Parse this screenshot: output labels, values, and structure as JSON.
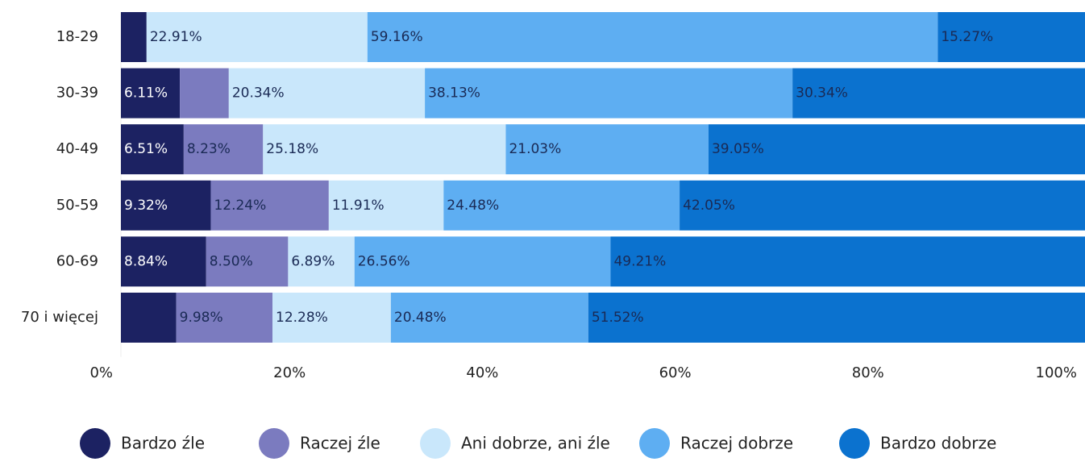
{
  "chart_data": {
    "type": "stacked_barh",
    "categories": [
      "18-29",
      "30-39",
      "40-49",
      "50-59",
      "60-69",
      "70 i więcej"
    ],
    "series": [
      {
        "name": "Bardzo źle",
        "color": "#1c2262",
        "values": [
          2.66,
          6.11,
          6.51,
          9.32,
          8.84,
          5.74
        ],
        "value_labels": [
          null,
          "6.11%",
          "6.51%",
          "9.32%",
          "8.84%",
          null
        ]
      },
      {
        "name": "Raczej źle",
        "color": "#7b7bbf",
        "values": [
          0,
          5.08,
          8.23,
          12.24,
          8.5,
          9.98
        ],
        "value_labels": [
          null,
          null,
          "8.23%",
          "12.24%",
          "8.50%",
          "9.98%"
        ]
      },
      {
        "name": "Ani dobrze, ani źle",
        "color": "#c9e7fb",
        "values": [
          22.91,
          20.34,
          25.18,
          11.91,
          6.89,
          12.28
        ],
        "value_labels": [
          "22.91%",
          "20.34%",
          "25.18%",
          "11.91%",
          "6.89%",
          "12.28%"
        ]
      },
      {
        "name": "Raczej dobrze",
        "color": "#5eaef2",
        "values": [
          59.16,
          38.13,
          21.03,
          24.48,
          26.56,
          20.48
        ],
        "value_labels": [
          "59.16%",
          "38.13%",
          "21.03%",
          "24.48%",
          "26.56%",
          "20.48%"
        ]
      },
      {
        "name": "Bardzo dobrze",
        "color": "#0b72cf",
        "values": [
          15.27,
          30.34,
          39.05,
          42.05,
          49.21,
          51.52
        ],
        "value_labels": [
          "15.27%",
          "30.34%",
          "39.05%",
          "42.05%",
          "49.21%",
          "51.52%"
        ]
      }
    ],
    "xlim": [
      0,
      100
    ],
    "xticks": [
      {
        "value": 0,
        "label": "0%"
      },
      {
        "value": 20,
        "label": "20%"
      },
      {
        "value": 40,
        "label": "40%"
      },
      {
        "value": 60,
        "label": "60%"
      },
      {
        "value": 80,
        "label": "80%"
      },
      {
        "value": 100,
        "label": "100%"
      }
    ],
    "legend": "bottom"
  }
}
